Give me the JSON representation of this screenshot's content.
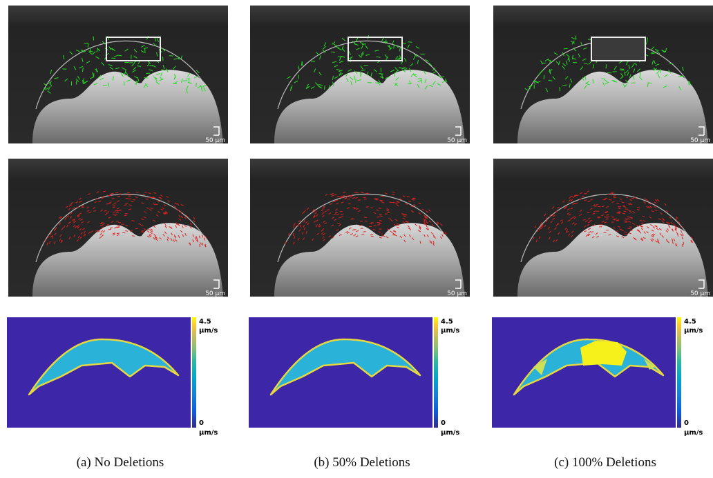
{
  "columns": [
    {
      "scale_bar_top": "50 µm",
      "scale_bar_middle": "50 µm",
      "colorbar_max": "4.5",
      "colorbar_max_unit": "µm/s",
      "colorbar_min": "0",
      "colorbar_min_unit": "µm/s",
      "caption": "(a) No Deletions"
    },
    {
      "scale_bar_top": "50 µm",
      "scale_bar_middle": "50 µm",
      "colorbar_max": "4.5",
      "colorbar_max_unit": "µm/s",
      "colorbar_min": "0",
      "colorbar_min_unit": "µm/s",
      "caption": "(b) 50% Deletions"
    },
    {
      "scale_bar_top": "50 µm",
      "scale_bar_middle": "50 µm",
      "colorbar_max": "4.5",
      "colorbar_max_unit": "µm/s",
      "colorbar_min": "0",
      "colorbar_min_unit": "µm/s",
      "caption": "(c) 100% Deletions"
    }
  ]
}
